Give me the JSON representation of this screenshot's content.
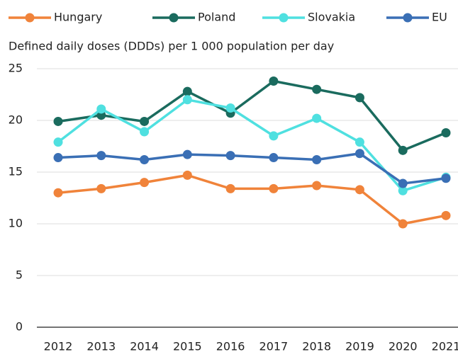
{
  "chart_data": {
    "type": "line",
    "y_label": "Defined daily doses (DDDs) per 1 000 population per day",
    "categories": [
      "2012",
      "2013",
      "2014",
      "2015",
      "2016",
      "2017",
      "2018",
      "2019",
      "2020",
      "2021"
    ],
    "series": [
      {
        "name": "Hungary",
        "color": "#f0833a",
        "values": [
          13.0,
          13.4,
          14.0,
          14.7,
          13.4,
          13.4,
          13.7,
          13.3,
          10.0,
          10.8
        ]
      },
      {
        "name": "Poland",
        "color": "#1a6b5e",
        "values": [
          19.9,
          20.5,
          19.9,
          22.8,
          20.7,
          23.8,
          23.0,
          22.2,
          17.1,
          18.8
        ]
      },
      {
        "name": "Slovakia",
        "color": "#4fe0e0",
        "values": [
          17.9,
          21.1,
          18.9,
          22.0,
          21.2,
          18.5,
          20.2,
          17.9,
          13.2,
          14.5
        ]
      },
      {
        "name": "EU",
        "color": "#3a6fb5",
        "values": [
          16.4,
          16.6,
          16.2,
          16.7,
          16.6,
          16.4,
          16.2,
          16.8,
          13.9,
          14.4
        ]
      }
    ],
    "ylim": [
      0,
      25
    ],
    "yticks": [
      0,
      5,
      10,
      15,
      20,
      25
    ],
    "grid": true,
    "legend": "top"
  }
}
